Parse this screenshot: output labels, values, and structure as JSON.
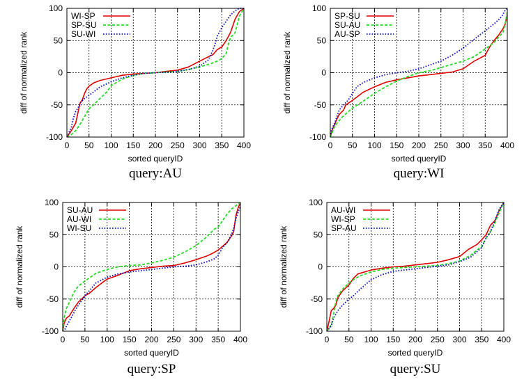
{
  "figure": {
    "colors": {
      "red": "#e00000",
      "green": "#22dd22",
      "blue": "#1010c0"
    }
  },
  "chart_data": [
    {
      "type": "line",
      "title": "query:AU",
      "xlabel": "sorted queryID",
      "ylabel": "diff of normalized rank",
      "xlim": [
        0,
        400
      ],
      "ylim": [
        -100,
        100
      ],
      "xticks": [
        "0",
        "50",
        "100",
        "150",
        "200",
        "250",
        "300",
        "350",
        "400"
      ],
      "yticks": [
        "100",
        "50",
        "0",
        "-50",
        "-100"
      ],
      "grid": true,
      "legend_position": "top-left",
      "series": [
        {
          "name": "WI-SP",
          "style": "solid",
          "color": "#e00000",
          "x": [
            0,
            10,
            20,
            25,
            30,
            35,
            40,
            45,
            50,
            60,
            75,
            100,
            125,
            150,
            175,
            200,
            225,
            250,
            275,
            300,
            320,
            330,
            340,
            350,
            360,
            370,
            380,
            390,
            400
          ],
          "y": [
            -100,
            -90,
            -78,
            -62,
            -47,
            -42,
            -32,
            -25,
            -21,
            -16,
            -12,
            -8,
            -4,
            -2,
            -1,
            0,
            2,
            4,
            9,
            18,
            25,
            28,
            36,
            40,
            50,
            63,
            83,
            95,
            100
          ]
        },
        {
          "name": "SP-SU",
          "style": "dashed",
          "color": "#22dd22",
          "x": [
            0,
            10,
            20,
            30,
            40,
            50,
            60,
            75,
            90,
            100,
            125,
            150,
            175,
            200,
            225,
            250,
            275,
            300,
            325,
            340,
            350,
            360,
            365,
            370,
            380,
            390,
            400
          ],
          "y": [
            -100,
            -96,
            -90,
            -80,
            -68,
            -56,
            -50,
            -40,
            -30,
            -20,
            -10,
            -4,
            -1,
            0,
            1,
            2,
            5,
            9,
            14,
            18,
            22,
            30,
            45,
            55,
            62,
            88,
            100
          ]
        },
        {
          "name": "SU-WI",
          "style": "dotted",
          "color": "#1010c0",
          "x": [
            0,
            10,
            15,
            20,
            25,
            30,
            40,
            50,
            60,
            75,
            100,
            125,
            150,
            175,
            200,
            225,
            250,
            275,
            300,
            320,
            330,
            335,
            340,
            350,
            360,
            370,
            380,
            390,
            400
          ],
          "y": [
            -100,
            -85,
            -70,
            -60,
            -55,
            -47,
            -40,
            -35,
            -30,
            -22,
            -14,
            -8,
            -4,
            -1,
            0,
            1,
            2,
            5,
            10,
            20,
            35,
            45,
            57,
            70,
            80,
            90,
            96,
            100,
            100
          ]
        }
      ]
    },
    {
      "type": "line",
      "title": "query:WI",
      "xlabel": "sorted queryID",
      "ylabel": "diff of normalized rank",
      "xlim": [
        0,
        400
      ],
      "ylim": [
        -100,
        100
      ],
      "xticks": [
        "0",
        "50",
        "100",
        "150",
        "200",
        "250",
        "300",
        "350",
        "400"
      ],
      "yticks": [
        "100",
        "50",
        "0",
        "-50",
        "-100"
      ],
      "grid": true,
      "legend_position": "top-left",
      "series": [
        {
          "name": "SP-SU",
          "style": "solid",
          "color": "#e00000",
          "x": [
            0,
            5,
            10,
            15,
            20,
            30,
            35,
            50,
            75,
            100,
            125,
            150,
            175,
            200,
            225,
            250,
            275,
            300,
            325,
            350,
            360,
            370,
            380,
            390,
            395,
            400
          ],
          "y": [
            -100,
            -88,
            -80,
            -72,
            -65,
            -58,
            -50,
            -43,
            -30,
            -22,
            -15,
            -11,
            -8,
            -5,
            -3,
            -1,
            1,
            6,
            18,
            27,
            40,
            50,
            58,
            68,
            75,
            90
          ]
        },
        {
          "name": "SU-AU",
          "style": "dashed",
          "color": "#22dd22",
          "x": [
            0,
            10,
            25,
            50,
            75,
            100,
            125,
            150,
            175,
            200,
            225,
            250,
            275,
            300,
            325,
            350,
            370,
            380,
            390,
            395,
            400
          ],
          "y": [
            -100,
            -83,
            -70,
            -55,
            -44,
            -32,
            -22,
            -13,
            -6,
            0,
            3,
            8,
            13,
            18,
            25,
            37,
            47,
            55,
            62,
            75,
            95
          ]
        },
        {
          "name": "AU-SP",
          "style": "dotted",
          "color": "#1010c0",
          "x": [
            0,
            5,
            10,
            20,
            30,
            40,
            50,
            60,
            75,
            100,
            125,
            150,
            175,
            200,
            225,
            250,
            275,
            300,
            325,
            350,
            370,
            380,
            390,
            395,
            400
          ],
          "y": [
            -95,
            -85,
            -78,
            -58,
            -50,
            -43,
            -32,
            -22,
            -15,
            -8,
            -3,
            0,
            2,
            6,
            12,
            18,
            27,
            38,
            52,
            65,
            76,
            82,
            90,
            97,
            100
          ]
        }
      ]
    },
    {
      "type": "line",
      "title": "query:SP",
      "xlabel": "sorted queryID",
      "ylabel": "diff of normalized rank",
      "xlim": [
        0,
        400
      ],
      "ylim": [
        -100,
        100
      ],
      "xticks": [
        "0",
        "50",
        "100",
        "150",
        "200",
        "250",
        "300",
        "350",
        "400"
      ],
      "yticks": [
        "100",
        "50",
        "0",
        "-50",
        "-100"
      ],
      "grid": true,
      "legend_position": "top-left",
      "series": [
        {
          "name": "SU-AU",
          "style": "solid",
          "color": "#e00000",
          "x": [
            0,
            3,
            8,
            15,
            25,
            35,
            50,
            60,
            75,
            90,
            100,
            125,
            150,
            175,
            200,
            225,
            250,
            275,
            300,
            325,
            340,
            350,
            360,
            370,
            380,
            385,
            390,
            395,
            400
          ],
          "y": [
            -100,
            -88,
            -80,
            -76,
            -65,
            -55,
            -45,
            -41,
            -32,
            -24,
            -19,
            -13,
            -6,
            -3,
            -1,
            1,
            2,
            6,
            11,
            17,
            22,
            26,
            32,
            38,
            48,
            55,
            80,
            92,
            100
          ]
        },
        {
          "name": "AU-WI",
          "style": "dashed",
          "color": "#22dd22",
          "x": [
            0,
            3,
            8,
            15,
            25,
            35,
            50,
            75,
            100,
            125,
            150,
            175,
            200,
            225,
            250,
            275,
            300,
            325,
            340,
            350,
            360,
            370,
            380,
            390,
            400
          ],
          "y": [
            -100,
            -80,
            -65,
            -55,
            -40,
            -30,
            -22,
            -10,
            -4,
            0,
            2,
            3,
            6,
            10,
            15,
            23,
            33,
            47,
            58,
            62,
            72,
            82,
            90,
            95,
            100
          ]
        },
        {
          "name": "WI-SU",
          "style": "dotted",
          "color": "#1010c0",
          "x": [
            0,
            5,
            10,
            20,
            30,
            40,
            50,
            75,
            100,
            125,
            150,
            175,
            200,
            225,
            250,
            275,
            300,
            325,
            340,
            350,
            360,
            370,
            380,
            385,
            390,
            395,
            400
          ],
          "y": [
            -100,
            -97,
            -90,
            -78,
            -65,
            -55,
            -45,
            -25,
            -16,
            -11,
            -8,
            -6,
            -4,
            -2,
            0,
            1,
            3,
            8,
            12,
            18,
            30,
            38,
            50,
            60,
            75,
            85,
            95
          ]
        }
      ]
    },
    {
      "type": "line",
      "title": "query:SU",
      "xlabel": "sorted queryID",
      "ylabel": "diff of normalized rank",
      "xlim": [
        0,
        400
      ],
      "ylim": [
        -100,
        100
      ],
      "xticks": [
        "0",
        "50",
        "100",
        "150",
        "200",
        "250",
        "300",
        "350",
        "400"
      ],
      "yticks": [
        "100",
        "50",
        "0",
        "-50",
        "-100"
      ],
      "grid": true,
      "legend_position": "top-left",
      "series": [
        {
          "name": "AU-WI",
          "style": "solid",
          "color": "#e00000",
          "x": [
            0,
            5,
            10,
            15,
            20,
            25,
            35,
            50,
            60,
            70,
            80,
            100,
            125,
            150,
            175,
            200,
            225,
            250,
            275,
            300,
            320,
            340,
            350,
            360,
            370,
            380,
            390,
            400
          ],
          "y": [
            -100,
            -85,
            -68,
            -65,
            -60,
            -48,
            -38,
            -28,
            -18,
            -11,
            -9,
            -5,
            -2,
            0,
            1,
            3,
            5,
            7,
            11,
            16,
            27,
            35,
            42,
            50,
            65,
            72,
            88,
            100
          ]
        },
        {
          "name": "WI-SP",
          "style": "dashed",
          "color": "#22dd22",
          "x": [
            0,
            10,
            15,
            20,
            25,
            35,
            50,
            60,
            75,
            100,
            125,
            150,
            175,
            200,
            225,
            250,
            275,
            300,
            325,
            350,
            360,
            370,
            380,
            390,
            400
          ],
          "y": [
            -100,
            -90,
            -75,
            -55,
            -45,
            -35,
            -25,
            -20,
            -14,
            -8,
            -4,
            -2,
            -1,
            0,
            1,
            2,
            5,
            9,
            18,
            32,
            45,
            55,
            68,
            85,
            100
          ]
        },
        {
          "name": "SP-AU",
          "style": "dotted",
          "color": "#1010c0",
          "x": [
            0,
            10,
            15,
            25,
            35,
            50,
            60,
            75,
            90,
            100,
            125,
            150,
            175,
            200,
            225,
            250,
            275,
            300,
            325,
            350,
            360,
            370,
            380,
            390,
            400
          ],
          "y": [
            -100,
            -92,
            -80,
            -68,
            -60,
            -50,
            -45,
            -35,
            -26,
            -20,
            -12,
            -7,
            -5,
            -3,
            -1,
            1,
            3,
            8,
            15,
            30,
            45,
            55,
            72,
            90,
            100
          ]
        }
      ]
    }
  ]
}
